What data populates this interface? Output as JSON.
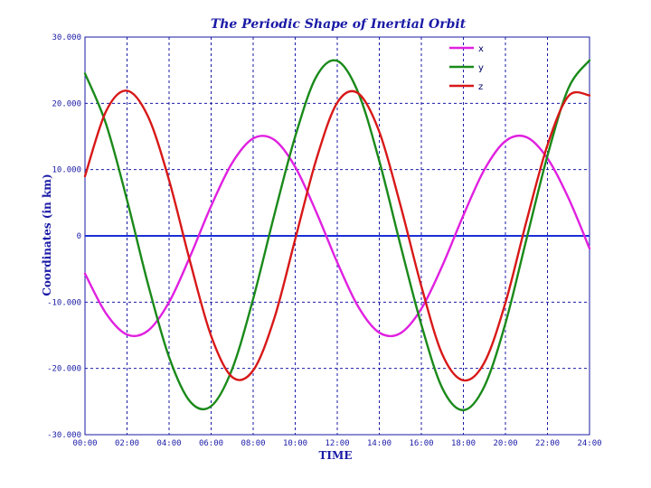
{
  "chart_data": {
    "type": "line",
    "title": "The Periodic Shape of Inertial Orbit",
    "xlabel": "TIME",
    "ylabel": "Coordinates (in km)",
    "xlim": [
      0,
      24
    ],
    "ylim": [
      -30000,
      30000
    ],
    "x_ticks": [
      0,
      2,
      4,
      6,
      8,
      10,
      12,
      14,
      16,
      18,
      20,
      22,
      24
    ],
    "x_tick_labels": [
      "00:00",
      "02:00",
      "04:00",
      "06:00",
      "08:00",
      "10:00",
      "12:00",
      "14:00",
      "16:00",
      "18:00",
      "20:00",
      "22:00",
      "24:00"
    ],
    "y_ticks": [
      30000,
      20000,
      10000,
      0,
      -10000,
      -20000,
      -30000
    ],
    "y_tick_labels": [
      "30.000",
      "20.000",
      "10.000",
      "0",
      "-10.000",
      "-20.000",
      "-30.000"
    ],
    "grid": true,
    "legend_position": "top-right",
    "series": [
      {
        "name": "x",
        "color": "#e020e0",
        "x": [
          0,
          1,
          2,
          3,
          4,
          5,
          6,
          7,
          8,
          9,
          10,
          11,
          12,
          13,
          14,
          15,
          16,
          17,
          18,
          19,
          20,
          21,
          22,
          23,
          24
        ],
        "values": [
          -5700,
          -11700,
          -14900,
          -14300,
          -10000,
          -3100,
          4500,
          11000,
          14700,
          14500,
          10400,
          3600,
          -4000,
          -10700,
          -14600,
          -14700,
          -11000,
          -4500,
          3100,
          10000,
          14300,
          14900,
          11700,
          5700,
          -1900
        ]
      },
      {
        "name": "y",
        "color": "#1a8a1a",
        "x": [
          0,
          1,
          2,
          3,
          4,
          5,
          6,
          7,
          8,
          9,
          10,
          11,
          12,
          13,
          14,
          15,
          16,
          17,
          18,
          19,
          20,
          21,
          22,
          23,
          24
        ],
        "values": [
          24500,
          16900,
          5400,
          -7300,
          -18300,
          -25000,
          -25700,
          -20100,
          -9500,
          3100,
          15000,
          24000,
          26400,
          21600,
          11300,
          -1300,
          -13400,
          -23000,
          -26300,
          -22700,
          -13200,
          -500,
          12100,
          22300,
          26500
        ]
      },
      {
        "name": "z",
        "color": "#d81818",
        "x": [
          0,
          1,
          2,
          3,
          4,
          5,
          6,
          7,
          8,
          9,
          10,
          11,
          12,
          13,
          14,
          15,
          16,
          17,
          18,
          19,
          20,
          21,
          22,
          23,
          24
        ],
        "values": [
          9000,
          18800,
          21900,
          18000,
          8400,
          -3900,
          -15100,
          -21300,
          -20300,
          -12500,
          -500,
          11500,
          20100,
          21500,
          15700,
          4700,
          -7600,
          -17900,
          -21800,
          -19100,
          -10100,
          2200,
          13700,
          21100,
          21200
        ]
      }
    ]
  }
}
